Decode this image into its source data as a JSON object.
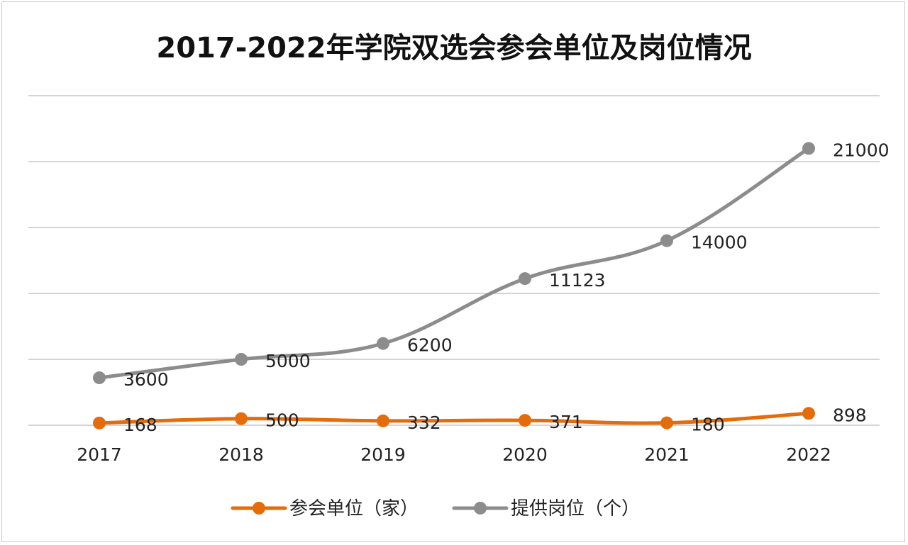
{
  "chart_data": {
    "type": "line",
    "title": "2017-2022年学院双选会参会单位及岗位情况",
    "categories": [
      "2017",
      "2018",
      "2019",
      "2020",
      "2021",
      "2022"
    ],
    "series": [
      {
        "name": "参会单位（家）",
        "color": "#e46c0a",
        "values": [
          168,
          500,
          332,
          371,
          180,
          898
        ]
      },
      {
        "name": "提供岗位（个）",
        "color": "#8c8c8c",
        "values": [
          3600,
          5000,
          6200,
          11123,
          14000,
          21000
        ]
      }
    ],
    "xlabel": "",
    "ylabel": "",
    "ylim": [
      0,
      25000
    ],
    "y_tick_step": 5000,
    "y_tick_labels_shown": false,
    "grid": true,
    "legend_position": "bottom",
    "smooth": true
  }
}
